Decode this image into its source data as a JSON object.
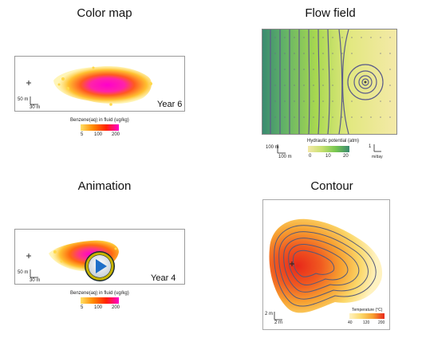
{
  "panels": {
    "color_map": {
      "title": "Color map",
      "year": "Year 6",
      "scale_v": "50 m",
      "scale_h": "30 m",
      "legend_label": "Benzene(aq) in fluid (ug/kg)",
      "ticks": [
        "5",
        "100",
        "200"
      ]
    },
    "flow_field": {
      "title": "Flow field",
      "scale_v": "100 m",
      "scale_h": "100 m",
      "legend_label": "Hydraulic potential (atm)",
      "ticks": [
        "0",
        "10",
        "20"
      ],
      "vector_label": "1",
      "vector_units": "m/day"
    },
    "animation": {
      "title": "Animation",
      "year": "Year 4",
      "scale_v": "50 m",
      "scale_h": "30 m",
      "legend_label": "Benzene(aq) in fluid (ug/kg)",
      "ticks": [
        "5",
        "100",
        "200"
      ]
    },
    "contour": {
      "title": "Contour",
      "scale_v": "2 m",
      "scale_h": "2 m",
      "legend_label": "Temperature (°C)",
      "ticks": [
        "40",
        "120",
        "200"
      ]
    }
  },
  "colors": {
    "benzene_low": "#ffe066",
    "benzene_mid": "#ff4400",
    "benzene_high": "#ff00cc",
    "flow_green": "#78c850",
    "flow_yellow": "#f4e9a0",
    "contour_line": "#555a7a",
    "play_ring": "#c8b400"
  },
  "icons": {
    "play_button": "play-icon",
    "well_marker": "plus-icon"
  }
}
